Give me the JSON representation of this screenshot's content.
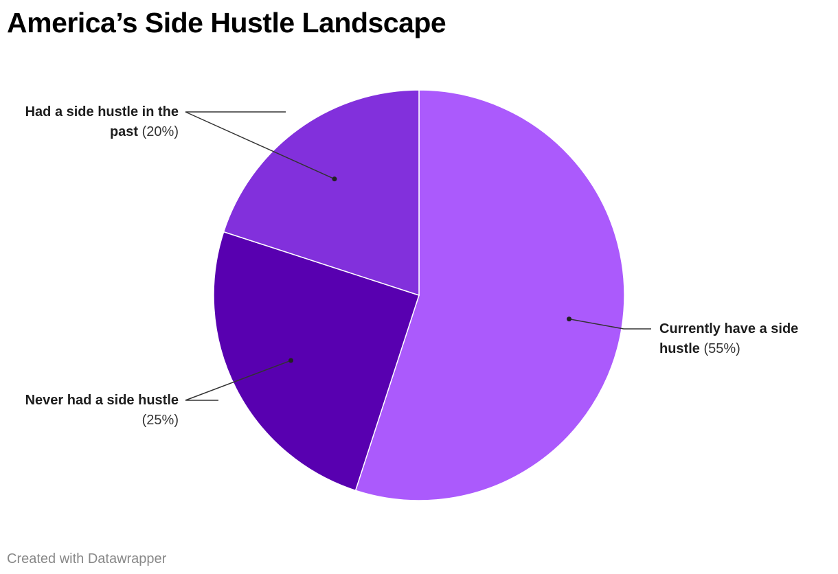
{
  "title": "America’s Side Hustle Landscape",
  "footer": "Created with Datawrapper",
  "chart_data": {
    "type": "pie",
    "title": "America’s Side Hustle Landscape",
    "slices": [
      {
        "label": "Currently have a side hustle",
        "value": 55,
        "value_label": "(55%)",
        "color": "#ab5afc"
      },
      {
        "label": "Never had a side hustle",
        "value": 25,
        "value_label": "(25%)",
        "color": "#5800b0"
      },
      {
        "label": "Had a side hustle in the past",
        "value": 20,
        "value_label": "(20%)",
        "color": "#8230dc"
      }
    ],
    "start_angle": "12 o'clock",
    "direction": "clockwise",
    "labels": "outside with leader lines"
  }
}
